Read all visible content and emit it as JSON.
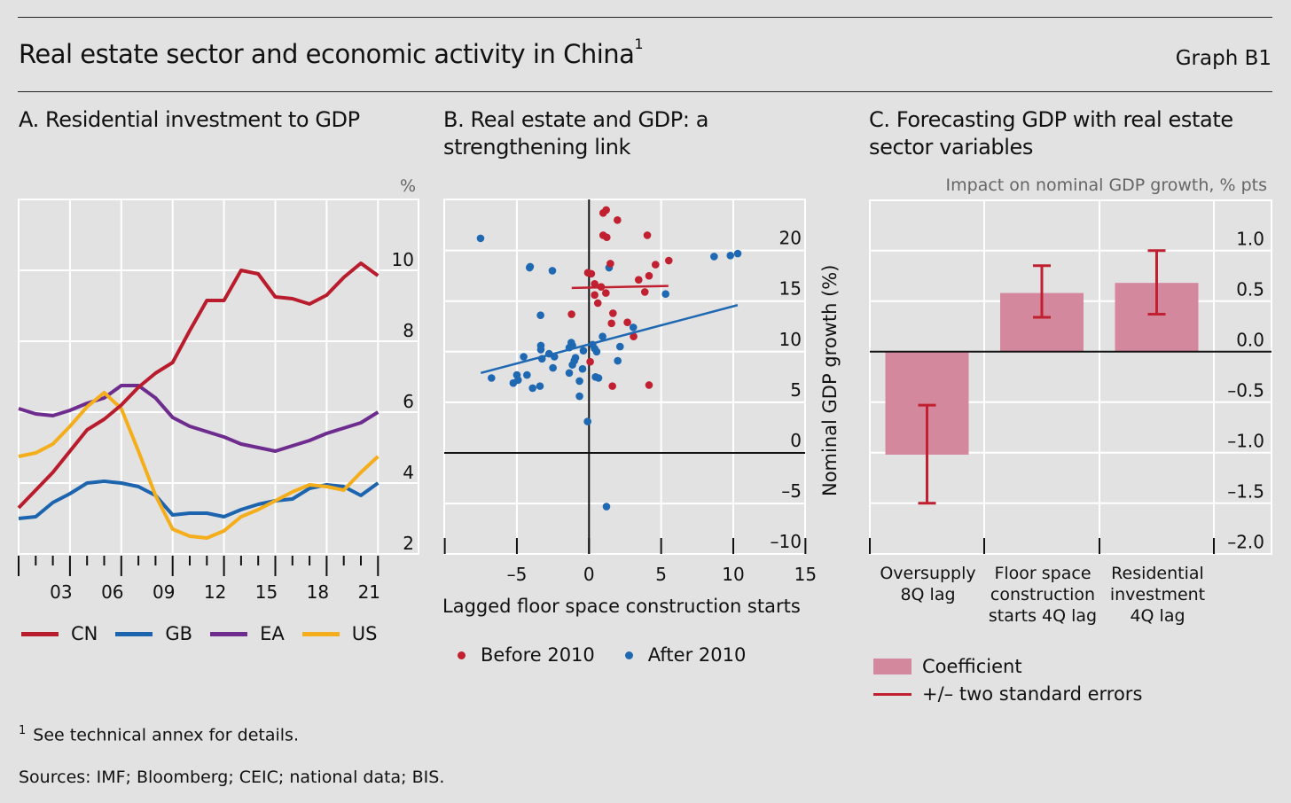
{
  "header": {
    "title": "Real estate sector and economic activity in China",
    "title_footnote_marker": "1",
    "graph_id": "Graph B1"
  },
  "footnotes": {
    "note_marker": "1",
    "note_text": "See technical annex for details.",
    "sources": "Sources: IMF; Bloomberg; CEIC; national data; BIS."
  },
  "colors": {
    "background": "#e2e2e2",
    "cn": "#b91c2c",
    "gb": "#1c64ae",
    "ea": "#6e2c8e",
    "us": "#f5ae1b",
    "before_2010": "#c0202f",
    "after_2010": "#1f68b2",
    "coefficient_bar": "#d4889d",
    "error_bar": "#c0202f"
  },
  "chart_data": [
    {
      "id": "A",
      "type": "line",
      "title": "A. Residential investment to GDP",
      "unit": "%",
      "xlabel": "",
      "ylabel": "%",
      "ylim": [
        2,
        12
      ],
      "yticks": [
        2,
        4,
        6,
        8,
        10
      ],
      "xlim": [
        2000,
        2021
      ],
      "x_tick_labels": [
        "03",
        "06",
        "09",
        "12",
        "15",
        "18",
        "21"
      ],
      "grid": true,
      "legend_position": "bottom",
      "x": [
        2000,
        2001,
        2002,
        2003,
        2004,
        2005,
        2006,
        2007,
        2008,
        2009,
        2010,
        2011,
        2012,
        2013,
        2014,
        2015,
        2016,
        2017,
        2018,
        2019,
        2020,
        2021
      ],
      "series": [
        {
          "name": "CN",
          "color_key": "cn",
          "values": [
            3.3,
            3.8,
            4.3,
            4.9,
            5.5,
            5.8,
            6.2,
            6.7,
            7.1,
            7.4,
            8.3,
            9.15,
            9.15,
            10.0,
            9.9,
            9.25,
            9.2,
            9.05,
            9.3,
            9.8,
            10.2,
            9.85
          ]
        },
        {
          "name": "GB",
          "color_key": "gb",
          "values": [
            3.0,
            3.05,
            3.45,
            3.7,
            4.0,
            4.05,
            4.0,
            3.9,
            3.65,
            3.1,
            3.15,
            3.15,
            3.05,
            3.25,
            3.4,
            3.5,
            3.55,
            3.85,
            3.95,
            3.9,
            3.65,
            4.0
          ]
        },
        {
          "name": "EA",
          "color_key": "ea",
          "values": [
            6.1,
            5.95,
            5.9,
            6.05,
            6.25,
            6.4,
            6.75,
            6.75,
            6.4,
            5.85,
            5.6,
            5.45,
            5.3,
            5.1,
            5.0,
            4.9,
            5.05,
            5.2,
            5.4,
            5.55,
            5.7,
            6.0
          ]
        },
        {
          "name": "US",
          "color_key": "us",
          "values": [
            4.75,
            4.85,
            5.1,
            5.6,
            6.15,
            6.55,
            6.1,
            4.9,
            3.65,
            2.7,
            2.5,
            2.45,
            2.65,
            3.05,
            3.25,
            3.5,
            3.75,
            3.95,
            3.9,
            3.8,
            4.3,
            4.75
          ]
        }
      ]
    },
    {
      "id": "B",
      "type": "scatter",
      "title": "B. Real estate and GDP: a strengthening link",
      "xlabel": "Lagged floor space construction starts",
      "ylabel": "Nominal GDP growth (%)",
      "xlim": [
        -10,
        15
      ],
      "ylim": [
        -10,
        25
      ],
      "xticks": [
        -5,
        0,
        5,
        10,
        15
      ],
      "xtick_labels": [
        "–5",
        "0",
        "5",
        "10",
        "15"
      ],
      "yticks": [
        -10,
        -5,
        0,
        5,
        10,
        15,
        20
      ],
      "ytick_labels": [
        "–10",
        "–5",
        "0",
        "5",
        "10",
        "15",
        "20"
      ],
      "grid": true,
      "legend_position": "bottom",
      "series": [
        {
          "name": "Before 2010",
          "color_key": "before_2010",
          "points": [
            [
              0.98,
              23.7
            ],
            [
              1.19,
              24.0
            ],
            [
              1.97,
              23.0
            ],
            [
              0.98,
              21.5
            ],
            [
              1.23,
              21.3
            ],
            [
              4.04,
              21.5
            ],
            [
              1.48,
              18.7
            ],
            [
              4.61,
              18.6
            ],
            [
              5.53,
              19.0
            ],
            [
              -0.08,
              17.8
            ],
            [
              0.16,
              17.7
            ],
            [
              4.16,
              17.5
            ],
            [
              3.44,
              17.1
            ],
            [
              0.39,
              16.7
            ],
            [
              0.84,
              16.4
            ],
            [
              1.17,
              15.8
            ],
            [
              0.39,
              15.6
            ],
            [
              3.87,
              15.9
            ],
            [
              0.61,
              14.8
            ],
            [
              -1.21,
              13.7
            ],
            [
              1.66,
              13.8
            ],
            [
              1.56,
              12.8
            ],
            [
              2.66,
              12.9
            ],
            [
              3.09,
              11.5
            ],
            [
              0.08,
              9.0
            ],
            [
              1.62,
              6.6
            ],
            [
              4.16,
              6.7
            ]
          ],
          "fit_line": [
            [
              -1.2,
              16.3
            ],
            [
              5.5,
              16.5
            ]
          ]
        },
        {
          "name": "After 2010",
          "color_key": "after_2010",
          "points": [
            [
              -7.52,
              21.2
            ],
            [
              -4.08,
              18.4
            ],
            [
              -4.12,
              18.3
            ],
            [
              -2.54,
              18.0
            ],
            [
              1.39,
              18.3
            ],
            [
              8.67,
              19.4
            ],
            [
              9.8,
              19.5
            ],
            [
              10.31,
              19.7
            ],
            [
              5.31,
              15.7
            ],
            [
              -3.36,
              13.6
            ],
            [
              3.07,
              12.4
            ],
            [
              0.94,
              11.5
            ],
            [
              2.15,
              10.5
            ],
            [
              0.25,
              10.7
            ],
            [
              0.39,
              10.3
            ],
            [
              0.53,
              10.0
            ],
            [
              -1.23,
              10.9
            ],
            [
              -1.15,
              10.6
            ],
            [
              -1.37,
              10.4
            ],
            [
              -0.39,
              10.1
            ],
            [
              -3.34,
              10.6
            ],
            [
              -3.34,
              10.2
            ],
            [
              -2.77,
              9.8
            ],
            [
              -2.4,
              9.5
            ],
            [
              -4.53,
              9.5
            ],
            [
              -3.26,
              9.3
            ],
            [
              -0.94,
              9.4
            ],
            [
              -1.02,
              9.1
            ],
            [
              -1.15,
              8.7
            ],
            [
              -0.45,
              8.3
            ],
            [
              -2.5,
              8.4
            ],
            [
              1.99,
              9.1
            ],
            [
              -1.37,
              7.9
            ],
            [
              -5.0,
              7.7
            ],
            [
              -4.3,
              7.7
            ],
            [
              -6.76,
              7.4
            ],
            [
              -5.25,
              6.9
            ],
            [
              -4.92,
              7.2
            ],
            [
              -3.91,
              6.4
            ],
            [
              -3.4,
              6.6
            ],
            [
              -0.66,
              7.1
            ],
            [
              0.45,
              7.5
            ],
            [
              0.66,
              7.4
            ],
            [
              -0.66,
              5.6
            ],
            [
              -0.1,
              3.1
            ],
            [
              1.21,
              -5.3
            ]
          ],
          "fit_line": [
            [
              -7.5,
              7.9
            ],
            [
              10.3,
              14.6
            ]
          ]
        }
      ]
    },
    {
      "id": "C",
      "type": "bar",
      "title": "C. Forecasting GDP with real estate sector variables",
      "ylabel": "Impact on nominal GDP growth, % pts",
      "ylim": [
        -2.0,
        1.5
      ],
      "yticks": [
        -2.0,
        -1.5,
        -1.0,
        -0.5,
        0.0,
        0.5,
        1.0
      ],
      "ytick_labels": [
        "–2.0",
        "–1.5",
        "–1.0",
        "–0.5",
        "0.0",
        "0.5",
        "1.0"
      ],
      "grid": true,
      "legend_position": "bottom-left",
      "categories": [
        [
          "Oversupply",
          "8Q lag"
        ],
        [
          "Floor space",
          "construction",
          "starts 4Q lag"
        ],
        [
          "Residential",
          "investment",
          "4Q lag"
        ]
      ],
      "series": [
        {
          "name": "Coefficient",
          "color_key": "coefficient_bar",
          "values": [
            -1.02,
            0.58,
            0.68
          ]
        },
        {
          "name": "+/– two standard errors",
          "color_key": "error_bar",
          "lower": [
            -1.5,
            0.34,
            0.37
          ],
          "upper": [
            -0.53,
            0.85,
            1.0
          ]
        }
      ]
    }
  ],
  "panelA": {
    "title": "A. Residential investment to GDP",
    "unit": "%",
    "legend": [
      "CN",
      "GB",
      "EA",
      "US"
    ]
  },
  "panelB": {
    "title_line1": "B. Real estate and GDP: a",
    "title_line2": "strengthening link",
    "xlabel": "Lagged floor space construction starts",
    "ylabel": "Nominal GDP growth (%)",
    "legend": [
      "Before 2010",
      "After 2010"
    ]
  },
  "panelC": {
    "title_line1": "C. Forecasting GDP with real estate",
    "title_line2": "sector variables",
    "unit": "Impact on nominal GDP growth, % pts",
    "legend": [
      "Coefficient",
      "+/– two standard errors"
    ]
  }
}
